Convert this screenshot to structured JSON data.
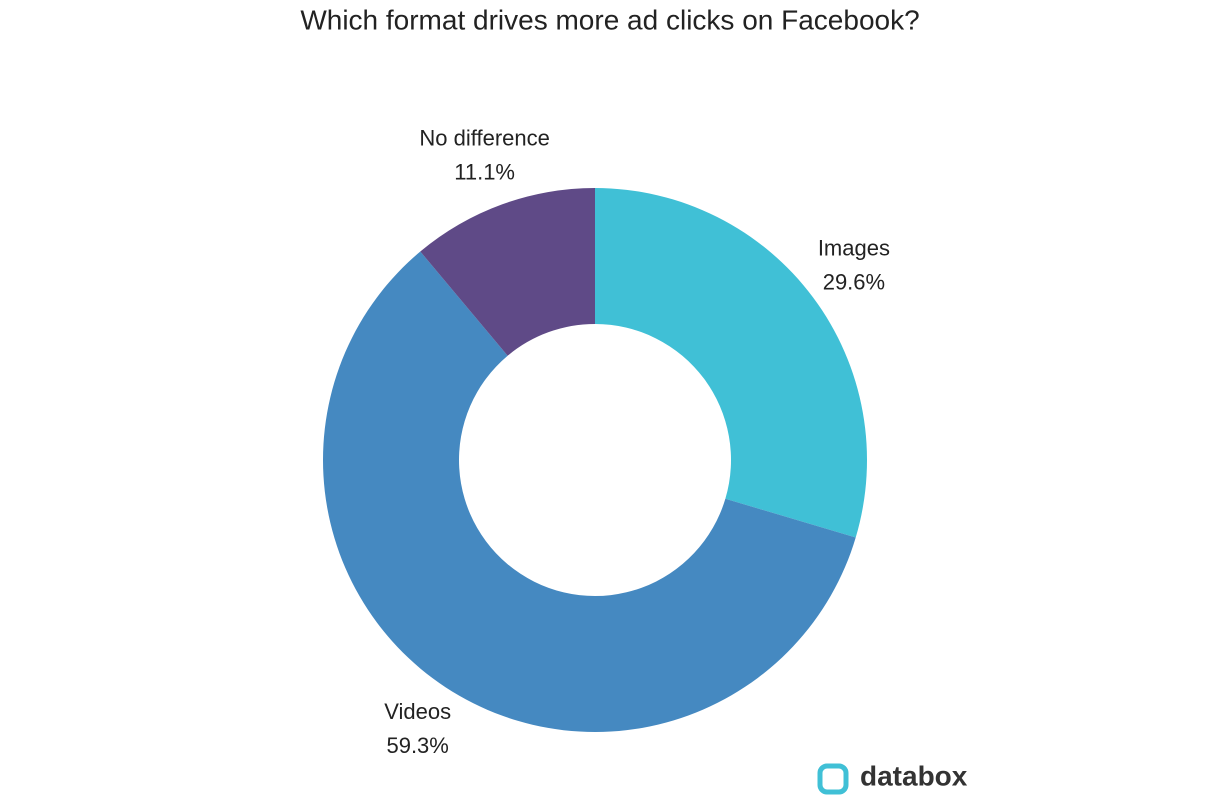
{
  "chart_data": {
    "type": "donut",
    "title": "Which format drives more ad clicks on Facebook?",
    "categories": [
      "Images",
      "Videos",
      "No difference"
    ],
    "values": [
      29.6,
      59.3,
      11.1
    ],
    "value_labels": [
      "29.6%",
      "59.3%",
      "11.1%"
    ],
    "colors": [
      "#40c0d6",
      "#4589c1",
      "#5f4a87"
    ]
  },
  "watermark": "databox"
}
